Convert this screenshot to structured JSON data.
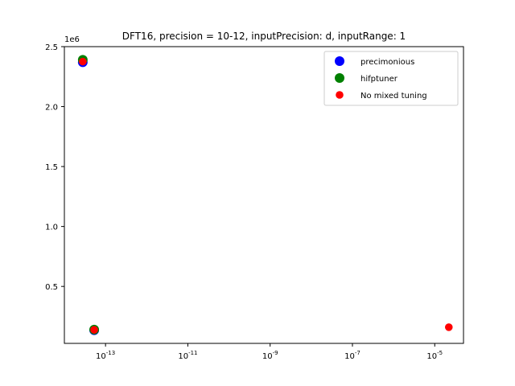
{
  "chart_data": {
    "type": "scatter",
    "title": "DFT16, precision = 10-12, inputPrecision: d, inputRange: 1",
    "xlabel": "",
    "ylabel": "",
    "x_scale": "log",
    "xlim": [
      1e-14,
      5e-05
    ],
    "ylim": [
      25000,
      2500000
    ],
    "y_offset_label": "1e6",
    "x_ticks": [
      1e-13,
      1e-11,
      1e-09,
      1e-07,
      1e-05
    ],
    "x_tick_labels": [
      "10^-13",
      "10^-11",
      "10^-9",
      "10^-7",
      "10^-5"
    ],
    "y_ticks": [
      500000,
      1000000,
      1500000,
      2000000,
      2500000
    ],
    "y_tick_labels": [
      "0.5",
      "1.0",
      "1.5",
      "2.0",
      "2.5"
    ],
    "grid": false,
    "legend_position": "top-right",
    "series": [
      {
        "name": "precimonious",
        "color": "#0000ff",
        "marker_scale": 1.25,
        "points": [
          {
            "x": 2.8e-14,
            "y": 2370000
          },
          {
            "x": 5.3e-14,
            "y": 135000
          }
        ]
      },
      {
        "name": "hifptuner",
        "color": "#008000",
        "marker_scale": 1.25,
        "points": [
          {
            "x": 2.8e-14,
            "y": 2390000
          },
          {
            "x": 5.3e-14,
            "y": 140000
          }
        ]
      },
      {
        "name": "No mixed tuning",
        "color": "#ff0000",
        "marker_scale": 1.0,
        "points": [
          {
            "x": 2.8e-14,
            "y": 2375000
          },
          {
            "x": 5.3e-14,
            "y": 138000
          },
          {
            "x": 2.2e-05,
            "y": 160000
          }
        ]
      }
    ]
  }
}
